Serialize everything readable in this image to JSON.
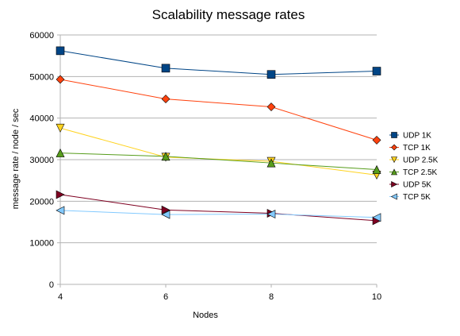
{
  "chart_data": {
    "type": "line",
    "title": "Scalability message rates",
    "xlabel": "Nodes",
    "ylabel": "message rate / node / sec",
    "x": [
      4,
      6,
      8,
      10
    ],
    "x_ticks": [
      "4",
      "6",
      "8",
      "10"
    ],
    "ylim": [
      0,
      60000
    ],
    "y_ticks": [
      "0",
      "10000",
      "20000",
      "30000",
      "40000",
      "50000",
      "60000"
    ],
    "grid": "horizontal",
    "legend_position": "right",
    "series": [
      {
        "name": "UDP 1K",
        "values": [
          56200,
          52000,
          50500,
          51300
        ],
        "color": "#004586",
        "marker": "square"
      },
      {
        "name": "TCP 1K",
        "values": [
          49300,
          44600,
          42700,
          34700
        ],
        "color": "#ff420e",
        "marker": "diamond"
      },
      {
        "name": "UDP 2.5K",
        "values": [
          37600,
          30600,
          29600,
          26300
        ],
        "color": "#ffd320",
        "marker": "triangle-down"
      },
      {
        "name": "TCP 2.5K",
        "values": [
          31600,
          30800,
          29200,
          27600
        ],
        "color": "#579d1c",
        "marker": "triangle-up"
      },
      {
        "name": "UDP 5K",
        "values": [
          21600,
          17900,
          17100,
          15300
        ],
        "color": "#7e0021",
        "marker": "triangle-right"
      },
      {
        "name": "TCP 5K",
        "values": [
          17800,
          16800,
          16900,
          16100
        ],
        "color": "#83caff",
        "marker": "triangle-left"
      }
    ]
  }
}
